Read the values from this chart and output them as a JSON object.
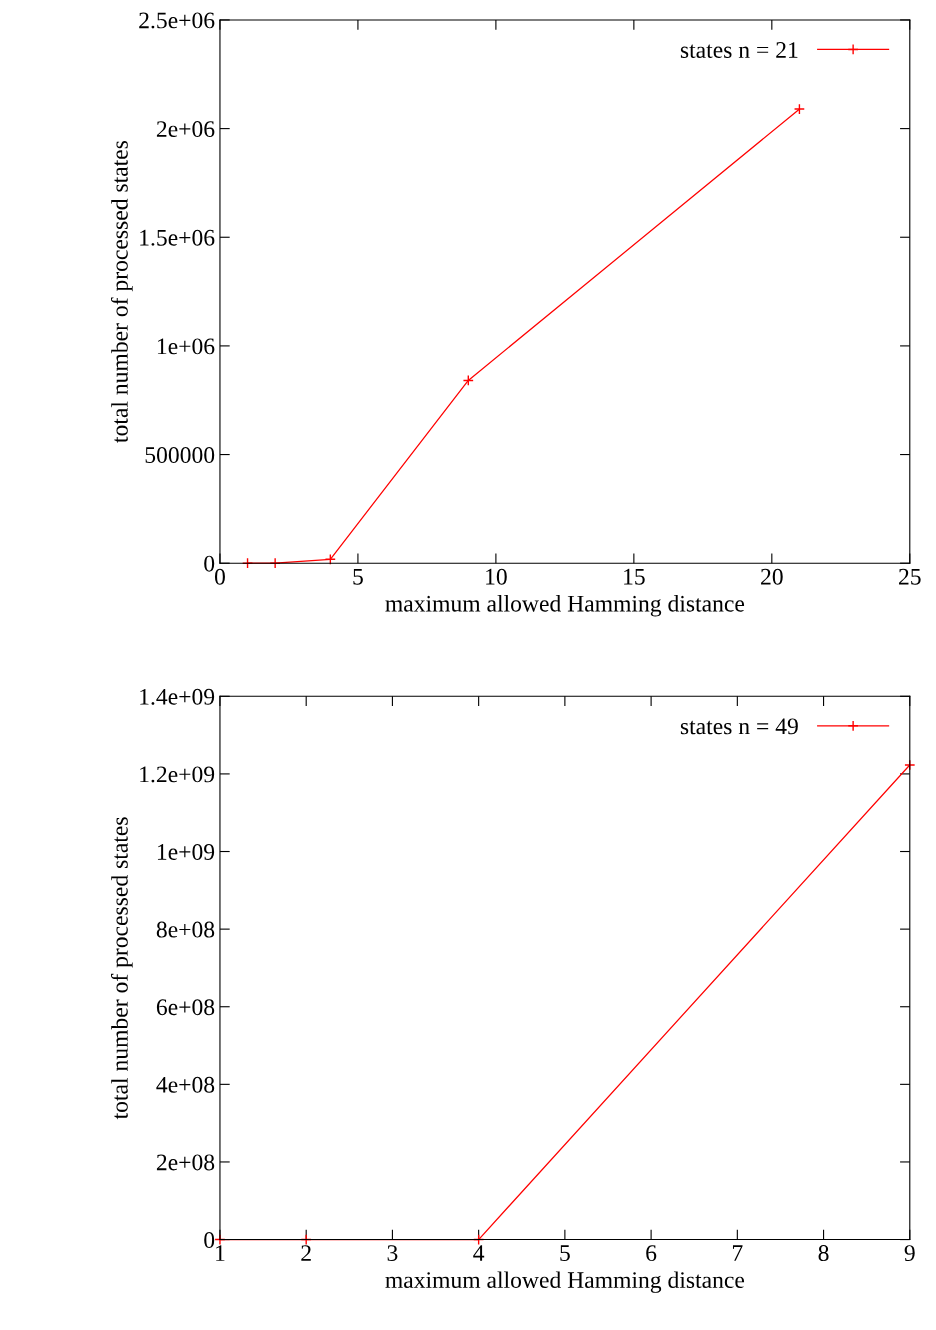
{
  "chart_data": [
    {
      "type": "line",
      "xlabel": "maximum allowed Hamming distance",
      "ylabel": "total number of processed states",
      "x": [
        1,
        2,
        4,
        9,
        21
      ],
      "series": [
        {
          "name": "states n = 21",
          "color": "#ff0000",
          "values": [
            0,
            0,
            18000,
            841000,
            2090000
          ]
        }
      ],
      "xlim": [
        0,
        25
      ],
      "xticks": [
        0,
        5,
        10,
        15,
        20,
        25
      ],
      "ylim": [
        0,
        2500000
      ],
      "yticks": [
        0,
        500000,
        {
          "value": 1000000,
          "label": "1e+06"
        },
        {
          "value": 1500000,
          "label": "1.5e+06"
        },
        {
          "value": 2000000,
          "label": "2e+06"
        },
        {
          "value": 2500000,
          "label": "2.5e+06"
        }
      ],
      "marker": "cross",
      "legend": "top right",
      "grid": false
    },
    {
      "type": "line",
      "xlabel": "maximum allowed Hamming distance",
      "ylabel": "total number of processed states",
      "x": [
        1,
        2,
        4,
        9
      ],
      "series": [
        {
          "name": "states n = 49",
          "color": "#ff0000",
          "values": [
            0,
            0,
            0,
            1223000000
          ]
        }
      ],
      "xlim": [
        1,
        9
      ],
      "xticks": [
        1,
        2,
        3,
        4,
        5,
        6,
        7,
        8,
        9
      ],
      "ylim": [
        0,
        1400000000
      ],
      "yticks": [
        0,
        {
          "value": 200000000,
          "label": "2e+08"
        },
        {
          "value": 400000000,
          "label": "4e+08"
        },
        {
          "value": 600000000,
          "label": "6e+08"
        },
        {
          "value": 800000000,
          "label": "8e+08"
        },
        {
          "value": 1000000000,
          "label": "1e+09"
        },
        {
          "value": 1200000000,
          "label": "1.2e+09"
        },
        {
          "value": 1400000000,
          "label": "1.4e+09"
        }
      ],
      "marker": "cross",
      "legend": "top right",
      "grid": false
    }
  ]
}
